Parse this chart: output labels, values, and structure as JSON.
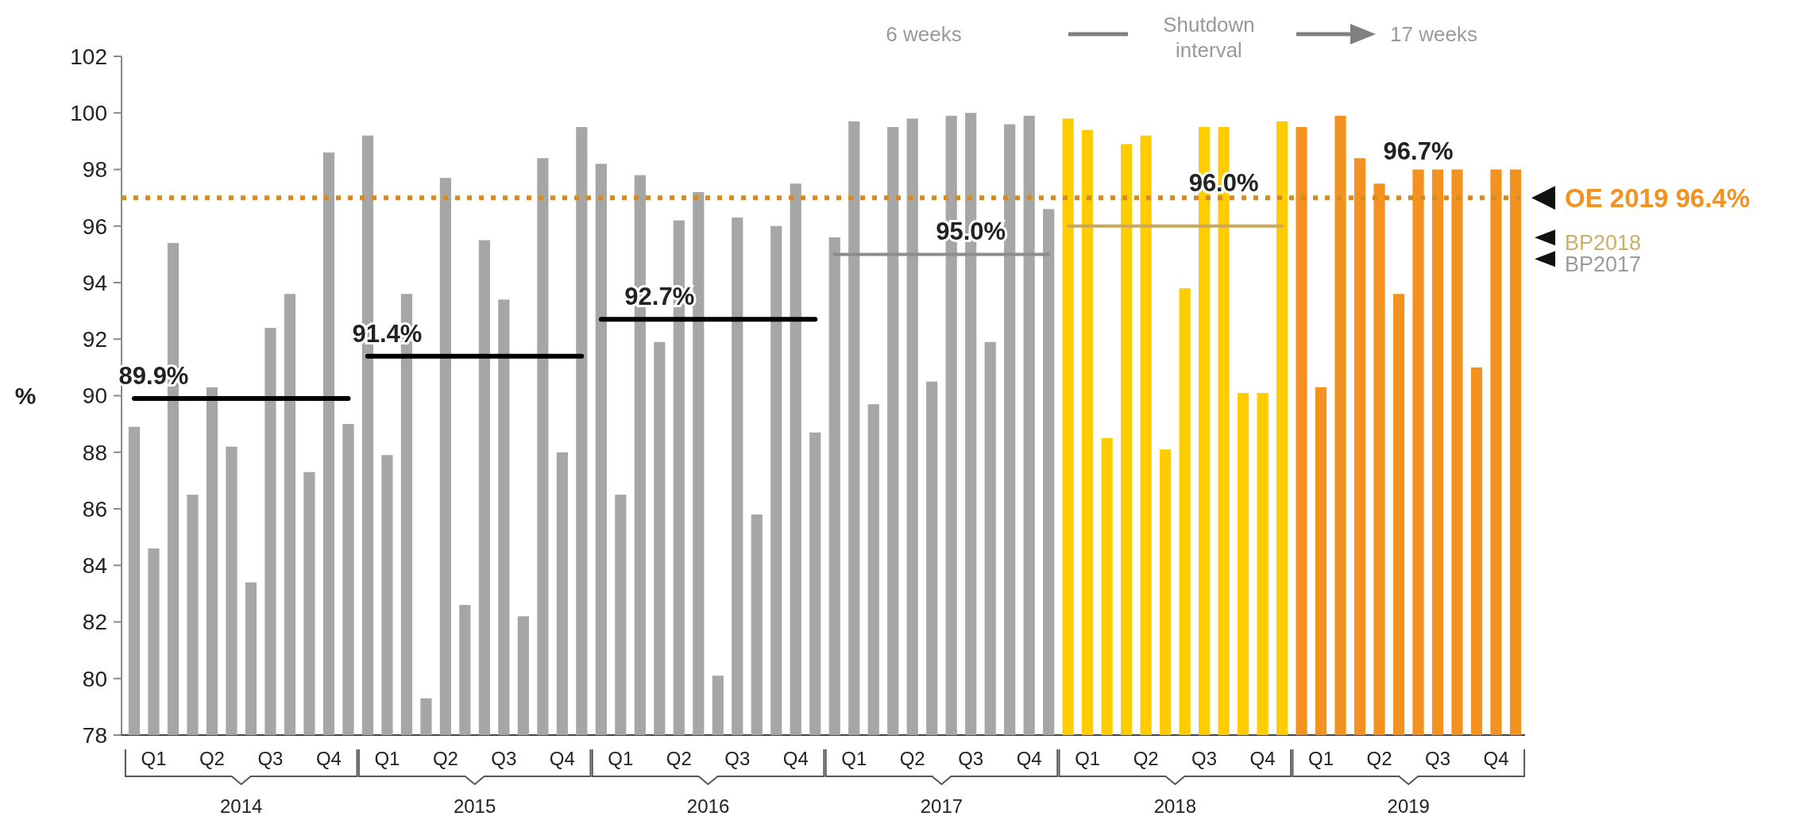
{
  "chart_data": {
    "type": "bar",
    "ylabel": "%",
    "categories": [
      null,
      "Q1",
      null,
      null,
      "Q2",
      null,
      null,
      "Q3",
      null,
      null,
      "Q4",
      null,
      null,
      "Q1",
      null,
      null,
      "Q2",
      null,
      null,
      "Q3",
      null,
      null,
      "Q4",
      null,
      null,
      "Q1",
      null,
      null,
      "Q2",
      null,
      null,
      "Q3",
      null,
      null,
      "Q4",
      null,
      null,
      "Q1",
      null,
      null,
      "Q2",
      null,
      null,
      "Q3",
      null,
      null,
      "Q4",
      null,
      null,
      "Q1",
      null,
      null,
      "Q2",
      null,
      null,
      "Q3",
      null,
      null,
      "Q4",
      null,
      null,
      "Q1",
      null,
      null,
      "Q2",
      null,
      null,
      "Q3",
      null,
      null,
      "Q4",
      null
    ],
    "ylim": [
      78,
      102
    ],
    "yticks": [
      78,
      80,
      82,
      84,
      86,
      88,
      90,
      92,
      94,
      96,
      98,
      100,
      102
    ],
    "series": [
      {
        "values": [
          88.9,
          84.6,
          95.4,
          86.5,
          90.3,
          88.2,
          83.4,
          92.4,
          93.6,
          87.3,
          98.6,
          89.0,
          99.2,
          87.9,
          93.6,
          79.3,
          97.7,
          82.6,
          95.5,
          93.4,
          82.2,
          98.4,
          88.0,
          99.5,
          98.2,
          86.5,
          97.8,
          91.9,
          96.2,
          97.2,
          80.1,
          96.3,
          85.8,
          96.0,
          97.5,
          88.7,
          95.6,
          99.7,
          89.7,
          99.5,
          99.8,
          90.5,
          99.9,
          100.0,
          91.9,
          99.6,
          99.9,
          96.6,
          99.8,
          99.4,
          88.5,
          98.9,
          99.2,
          88.1,
          93.8,
          99.5,
          99.5,
          90.1,
          90.1,
          99.7,
          99.5,
          90.3,
          99.9,
          98.4,
          97.5,
          93.6,
          98.0,
          98.0,
          98.0,
          91.0,
          98.0,
          98.0
        ],
        "colors": [
          "#a6a6a6",
          "#a6a6a6",
          "#a6a6a6",
          "#a6a6a6",
          "#a6a6a6",
          "#a6a6a6",
          "#a6a6a6",
          "#a6a6a6",
          "#a6a6a6",
          "#a6a6a6",
          "#a6a6a6",
          "#a6a6a6",
          "#a6a6a6",
          "#a6a6a6",
          "#a6a6a6",
          "#a6a6a6",
          "#a6a6a6",
          "#a6a6a6",
          "#a6a6a6",
          "#a6a6a6",
          "#a6a6a6",
          "#a6a6a6",
          "#a6a6a6",
          "#a6a6a6",
          "#a6a6a6",
          "#a6a6a6",
          "#a6a6a6",
          "#a6a6a6",
          "#a6a6a6",
          "#a6a6a6",
          "#a6a6a6",
          "#a6a6a6",
          "#a6a6a6",
          "#a6a6a6",
          "#a6a6a6",
          "#a6a6a6",
          "#a6a6a6",
          "#a6a6a6",
          "#a6a6a6",
          "#a6a6a6",
          "#a6a6a6",
          "#a6a6a6",
          "#a6a6a6",
          "#a6a6a6",
          "#a6a6a6",
          "#a6a6a6",
          "#a6a6a6",
          "#a6a6a6",
          "#ffcc00",
          "#ffcc00",
          "#ffcc00",
          "#ffcc00",
          "#ffcc00",
          "#ffcc00",
          "#ffcc00",
          "#ffcc00",
          "#ffcc00",
          "#ffcc00",
          "#ffcc00",
          "#ffcc00",
          "#f39220",
          "#f39220",
          "#f39220",
          "#f39220",
          "#f39220",
          "#f39220",
          "#f39220",
          "#f39220",
          "#f39220",
          "#f39220",
          "#f39220",
          "#f39220"
        ]
      },
      {
        "type": "line",
        "color": "#000000",
        "values": [
          89.9,
          89.9,
          89.9,
          89.9,
          89.9,
          89.9,
          89.9,
          89.9,
          89.9,
          89.9,
          89.9,
          89.9,
          null,
          null,
          null,
          null,
          null,
          null,
          null,
          null,
          null,
          null,
          null,
          null,
          null,
          null,
          null,
          null,
          null,
          null,
          null,
          null,
          null,
          null,
          null,
          null,
          null,
          null,
          null,
          null,
          null,
          null,
          null,
          null,
          null,
          null,
          null,
          null,
          null,
          null,
          null,
          null,
          null,
          null,
          null,
          null,
          null,
          null,
          null,
          null,
          null,
          null,
          null,
          null,
          null,
          null,
          null,
          null,
          null,
          null,
          null,
          null
        ],
        "value_labels": [
          null,
          "89.9%",
          null,
          null,
          null,
          null,
          null,
          null,
          null,
          null,
          null,
          null,
          null,
          null,
          null,
          null,
          null,
          null,
          null,
          null,
          null,
          null,
          null,
          null,
          null,
          null,
          null,
          null,
          null,
          null,
          null,
          null,
          null,
          null,
          null,
          null,
          null,
          null,
          null,
          null,
          null,
          null,
          null,
          null,
          null,
          null,
          null,
          null,
          null,
          null,
          null,
          null,
          null,
          null,
          null,
          null,
          null,
          null,
          null,
          null,
          null,
          null,
          null,
          null,
          null,
          null,
          null,
          null,
          null,
          null,
          null,
          null
        ]
      },
      {
        "type": "line",
        "color": "#000000",
        "values": [
          null,
          null,
          null,
          null,
          null,
          null,
          null,
          null,
          null,
          null,
          null,
          null,
          91.4,
          91.4,
          91.4,
          91.4,
          91.4,
          91.4,
          91.4,
          91.4,
          91.4,
          91.4,
          91.4,
          91.4,
          null,
          null,
          null,
          null,
          null,
          null,
          null,
          null,
          null,
          null,
          null,
          null,
          null,
          null,
          null,
          null,
          null,
          null,
          null,
          null,
          null,
          null,
          null,
          null,
          null,
          null,
          null,
          null,
          null,
          null,
          null,
          null,
          null,
          null,
          null,
          null,
          null,
          null,
          null,
          null,
          null,
          null,
          null,
          null,
          null,
          null,
          null,
          null
        ],
        "value_labels": [
          null,
          null,
          null,
          null,
          null,
          null,
          null,
          null,
          null,
          null,
          null,
          null,
          null,
          "91.4%",
          null,
          null,
          null,
          null,
          null,
          null,
          null,
          null,
          null,
          null,
          null,
          null,
          null,
          null,
          null,
          null,
          null,
          null,
          null,
          null,
          null,
          null,
          null,
          null,
          null,
          null,
          null,
          null,
          null,
          null,
          null,
          null,
          null,
          null,
          null,
          null,
          null,
          null,
          null,
          null,
          null,
          null,
          null,
          null,
          null,
          null,
          null,
          null,
          null,
          null,
          null,
          null,
          null,
          null,
          null,
          null,
          null,
          null
        ]
      },
      {
        "type": "line",
        "color": "#000000",
        "values": [
          null,
          null,
          null,
          null,
          null,
          null,
          null,
          null,
          null,
          null,
          null,
          null,
          null,
          null,
          null,
          null,
          null,
          null,
          null,
          null,
          null,
          null,
          null,
          null,
          92.7,
          92.7,
          92.7,
          92.7,
          92.7,
          92.7,
          92.7,
          92.7,
          92.7,
          92.7,
          92.7,
          92.7,
          null,
          null,
          null,
          null,
          null,
          null,
          null,
          null,
          null,
          null,
          null,
          null,
          null,
          null,
          null,
          null,
          null,
          null,
          null,
          null,
          null,
          null,
          null,
          null,
          null,
          null,
          null,
          null,
          null,
          null,
          null,
          null,
          null,
          null,
          null,
          null
        ],
        "value_labels": [
          null,
          null,
          null,
          null,
          null,
          null,
          null,
          null,
          null,
          null,
          null,
          null,
          null,
          null,
          null,
          null,
          null,
          null,
          null,
          null,
          null,
          null,
          null,
          null,
          null,
          null,
          null,
          "92.7%",
          null,
          null,
          null,
          null,
          null,
          null,
          null,
          null,
          null,
          null,
          null,
          null,
          null,
          null,
          null,
          null,
          null,
          null,
          null,
          null,
          null,
          null,
          null,
          null,
          null,
          null,
          null,
          null,
          null,
          null,
          null,
          null,
          null,
          null,
          null,
          null,
          null,
          null,
          null,
          null,
          null,
          null,
          null,
          null
        ]
      },
      {
        "type": "line",
        "color": "#8c8c8c",
        "values": [
          null,
          null,
          null,
          null,
          null,
          null,
          null,
          null,
          null,
          null,
          null,
          null,
          null,
          null,
          null,
          null,
          null,
          null,
          null,
          null,
          null,
          null,
          null,
          null,
          null,
          null,
          null,
          null,
          null,
          null,
          null,
          null,
          null,
          null,
          null,
          null,
          95.0,
          95.0,
          95.0,
          95.0,
          95.0,
          95.0,
          95.0,
          95.0,
          95.0,
          95.0,
          95.0,
          95.0,
          null,
          null,
          null,
          null,
          null,
          null,
          null,
          null,
          null,
          null,
          null,
          null,
          null,
          null,
          null,
          null,
          null,
          null,
          null,
          null,
          null,
          null,
          null,
          null
        ],
        "value_labels": [
          null,
          null,
          null,
          null,
          null,
          null,
          null,
          null,
          null,
          null,
          null,
          null,
          null,
          null,
          null,
          null,
          null,
          null,
          null,
          null,
          null,
          null,
          null,
          null,
          null,
          null,
          null,
          null,
          null,
          null,
          null,
          null,
          null,
          null,
          null,
          null,
          null,
          null,
          null,
          null,
          null,
          null,
          null,
          "95.0%",
          null,
          null,
          null,
          null,
          null,
          null,
          null,
          null,
          null,
          null,
          null,
          null,
          null,
          null,
          null,
          null,
          null,
          null,
          null,
          null,
          null,
          null,
          null,
          null,
          null,
          null,
          null,
          null
        ]
      },
      {
        "type": "line",
        "color": "#c9a85a",
        "values": [
          null,
          null,
          null,
          null,
          null,
          null,
          null,
          null,
          null,
          null,
          null,
          null,
          null,
          null,
          null,
          null,
          null,
          null,
          null,
          null,
          null,
          null,
          null,
          null,
          null,
          null,
          null,
          null,
          null,
          null,
          null,
          null,
          null,
          null,
          null,
          null,
          null,
          null,
          null,
          null,
          null,
          null,
          null,
          null,
          null,
          null,
          null,
          null,
          96.0,
          96.0,
          96.0,
          96.0,
          96.0,
          96.0,
          96.0,
          96.0,
          96.0,
          96.0,
          96.0,
          96.0,
          null,
          null,
          null,
          null,
          null,
          null,
          null,
          null,
          null,
          null,
          null,
          null
        ],
        "value_labels": [
          null,
          null,
          null,
          null,
          null,
          null,
          null,
          null,
          null,
          null,
          null,
          null,
          null,
          null,
          null,
          null,
          null,
          null,
          null,
          null,
          null,
          null,
          null,
          null,
          null,
          null,
          null,
          null,
          null,
          null,
          null,
          null,
          null,
          null,
          null,
          null,
          null,
          null,
          null,
          null,
          null,
          null,
          null,
          null,
          null,
          null,
          null,
          null,
          null,
          null,
          null,
          null,
          null,
          null,
          null,
          null,
          "96.0%",
          null,
          null,
          null,
          null,
          null,
          null,
          null,
          null,
          null,
          null,
          null,
          null,
          null,
          null,
          null
        ]
      }
    ],
    "ref_lines": [
      {
        "axis": "y",
        "value": 97.0,
        "label": "OE 2019 96.4%",
        "color": "#d98a1c",
        "line_style": "dotted"
      }
    ],
    "annotations": [
      "6 weeks",
      "Shutdown interval",
      "17 weeks",
      "96.7%",
      "2014",
      "2015",
      "2016",
      "2017",
      "2018",
      "2019",
      "BP2018",
      "BP2017"
    ],
    "grid": false
  }
}
